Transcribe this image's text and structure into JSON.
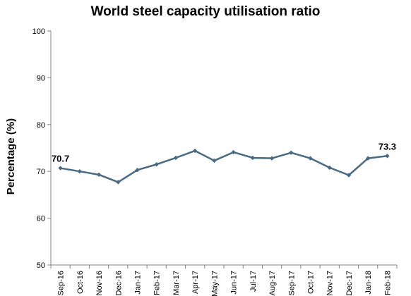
{
  "chart_data": {
    "type": "line",
    "title": "World steel capacity utilisation ratio",
    "xlabel": "",
    "ylabel": "Percentage (%)",
    "ylim": [
      50,
      100
    ],
    "yticks": [
      50,
      60,
      70,
      80,
      90,
      100
    ],
    "grid": false,
    "legend": "none",
    "categories": [
      "Sep-16",
      "Oct-16",
      "Nov-16",
      "Dec-16",
      "Jan-17",
      "Feb-17",
      "Mar-17",
      "Apr-17",
      "May-17",
      "Jun-17",
      "Jul-17",
      "Aug-17",
      "Sep-17",
      "Oct-17",
      "Nov-17",
      "Dec-17",
      "Jan-18",
      "Feb-18"
    ],
    "series": [
      {
        "values": [
          70.7,
          70.0,
          69.3,
          67.7,
          70.3,
          71.5,
          72.9,
          74.4,
          72.3,
          74.1,
          72.9,
          72.8,
          74.0,
          72.8,
          70.8,
          69.2,
          72.8,
          73.3
        ],
        "color": "#4a6a82"
      }
    ],
    "data_labels": [
      {
        "index": 0,
        "text": "70.7"
      },
      {
        "index": 17,
        "text": "73.3"
      }
    ],
    "axis_color": "#868686"
  }
}
